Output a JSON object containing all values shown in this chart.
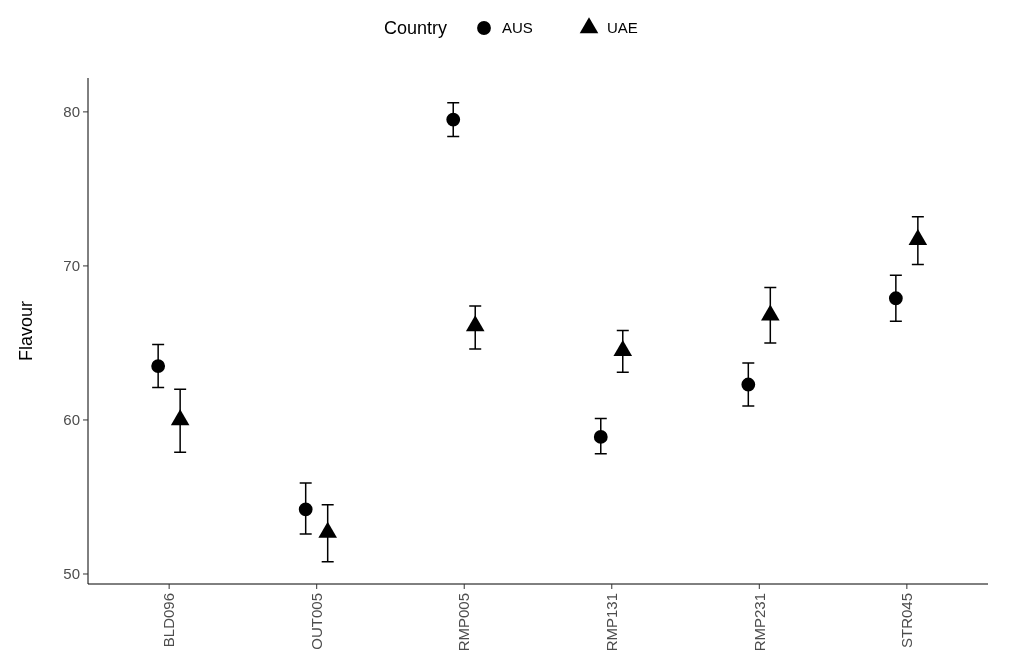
{
  "chart_data": {
    "type": "scatter",
    "ylabel": "Flavour",
    "legend_title": "Country",
    "legend": "top",
    "categories": [
      "BLD096",
      "OUT005",
      "RMP005",
      "RMP131",
      "RMP231",
      "STR045"
    ],
    "ylim": [
      49.35,
      82.2
    ],
    "yticks": [
      50,
      60,
      70,
      80
    ],
    "grid": false,
    "series": [
      {
        "name": "AUS",
        "color": "#000000",
        "marker": "circle",
        "values": [
          63.5,
          54.2,
          79.5,
          58.9,
          62.3,
          67.9
        ],
        "errors": [
          [
            62.1,
            64.9
          ],
          [
            52.6,
            55.9
          ],
          [
            78.4,
            80.6
          ],
          [
            57.8,
            60.1
          ],
          [
            60.9,
            63.7
          ],
          [
            66.4,
            69.4
          ]
        ]
      },
      {
        "name": "UAE",
        "color": "#000000",
        "marker": "triangle",
        "values": [
          60.0,
          52.7,
          66.1,
          64.5,
          66.8,
          71.7
        ],
        "errors": [
          [
            57.9,
            62.0
          ],
          [
            50.8,
            54.5
          ],
          [
            64.6,
            67.4
          ],
          [
            63.1,
            65.8
          ],
          [
            65.0,
            68.6
          ],
          [
            70.1,
            73.2
          ]
        ]
      }
    ]
  }
}
